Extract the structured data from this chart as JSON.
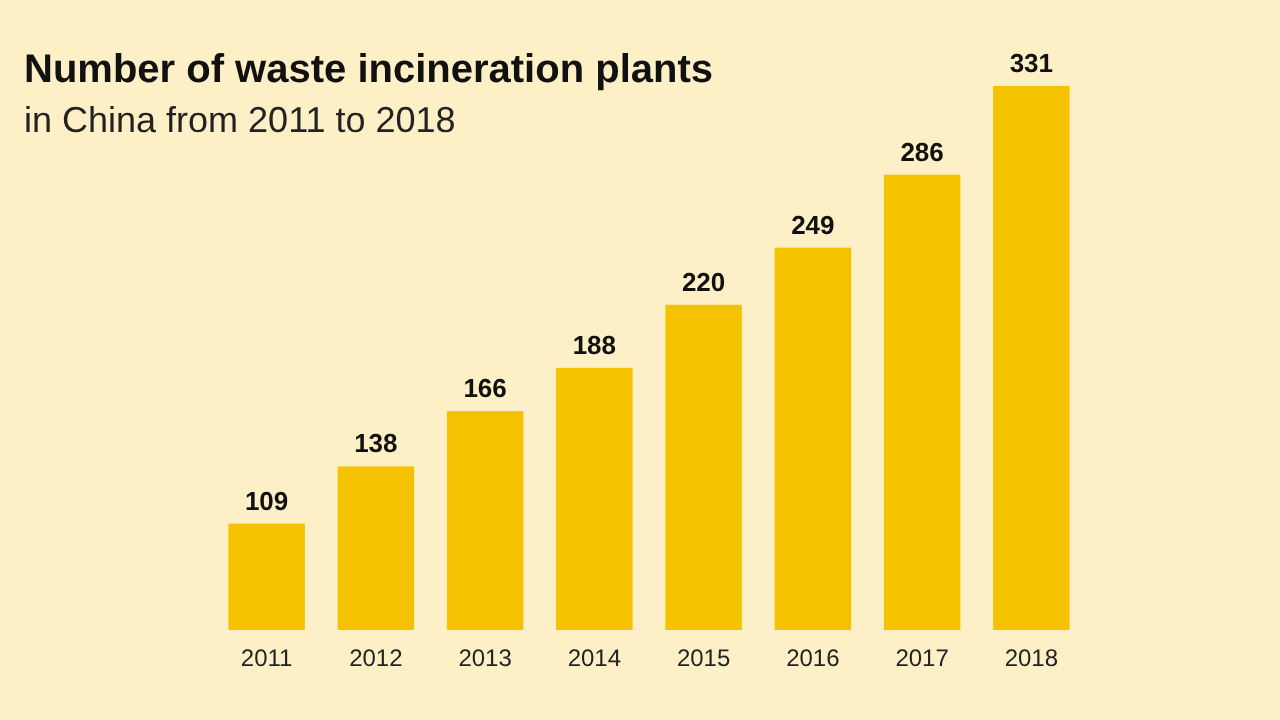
{
  "chart_data": {
    "type": "bar",
    "title": "Number of waste incineration plants",
    "subtitle": "in China from 2011 to 2018",
    "categories": [
      "2011",
      "2012",
      "2013",
      "2014",
      "2015",
      "2016",
      "2017",
      "2018"
    ],
    "values": [
      109,
      138,
      166,
      188,
      220,
      249,
      286,
      331
    ],
    "color": "#f5c200",
    "data_labels": true,
    "ylim": [
      55,
      331
    ],
    "tick_labels": "x"
  }
}
